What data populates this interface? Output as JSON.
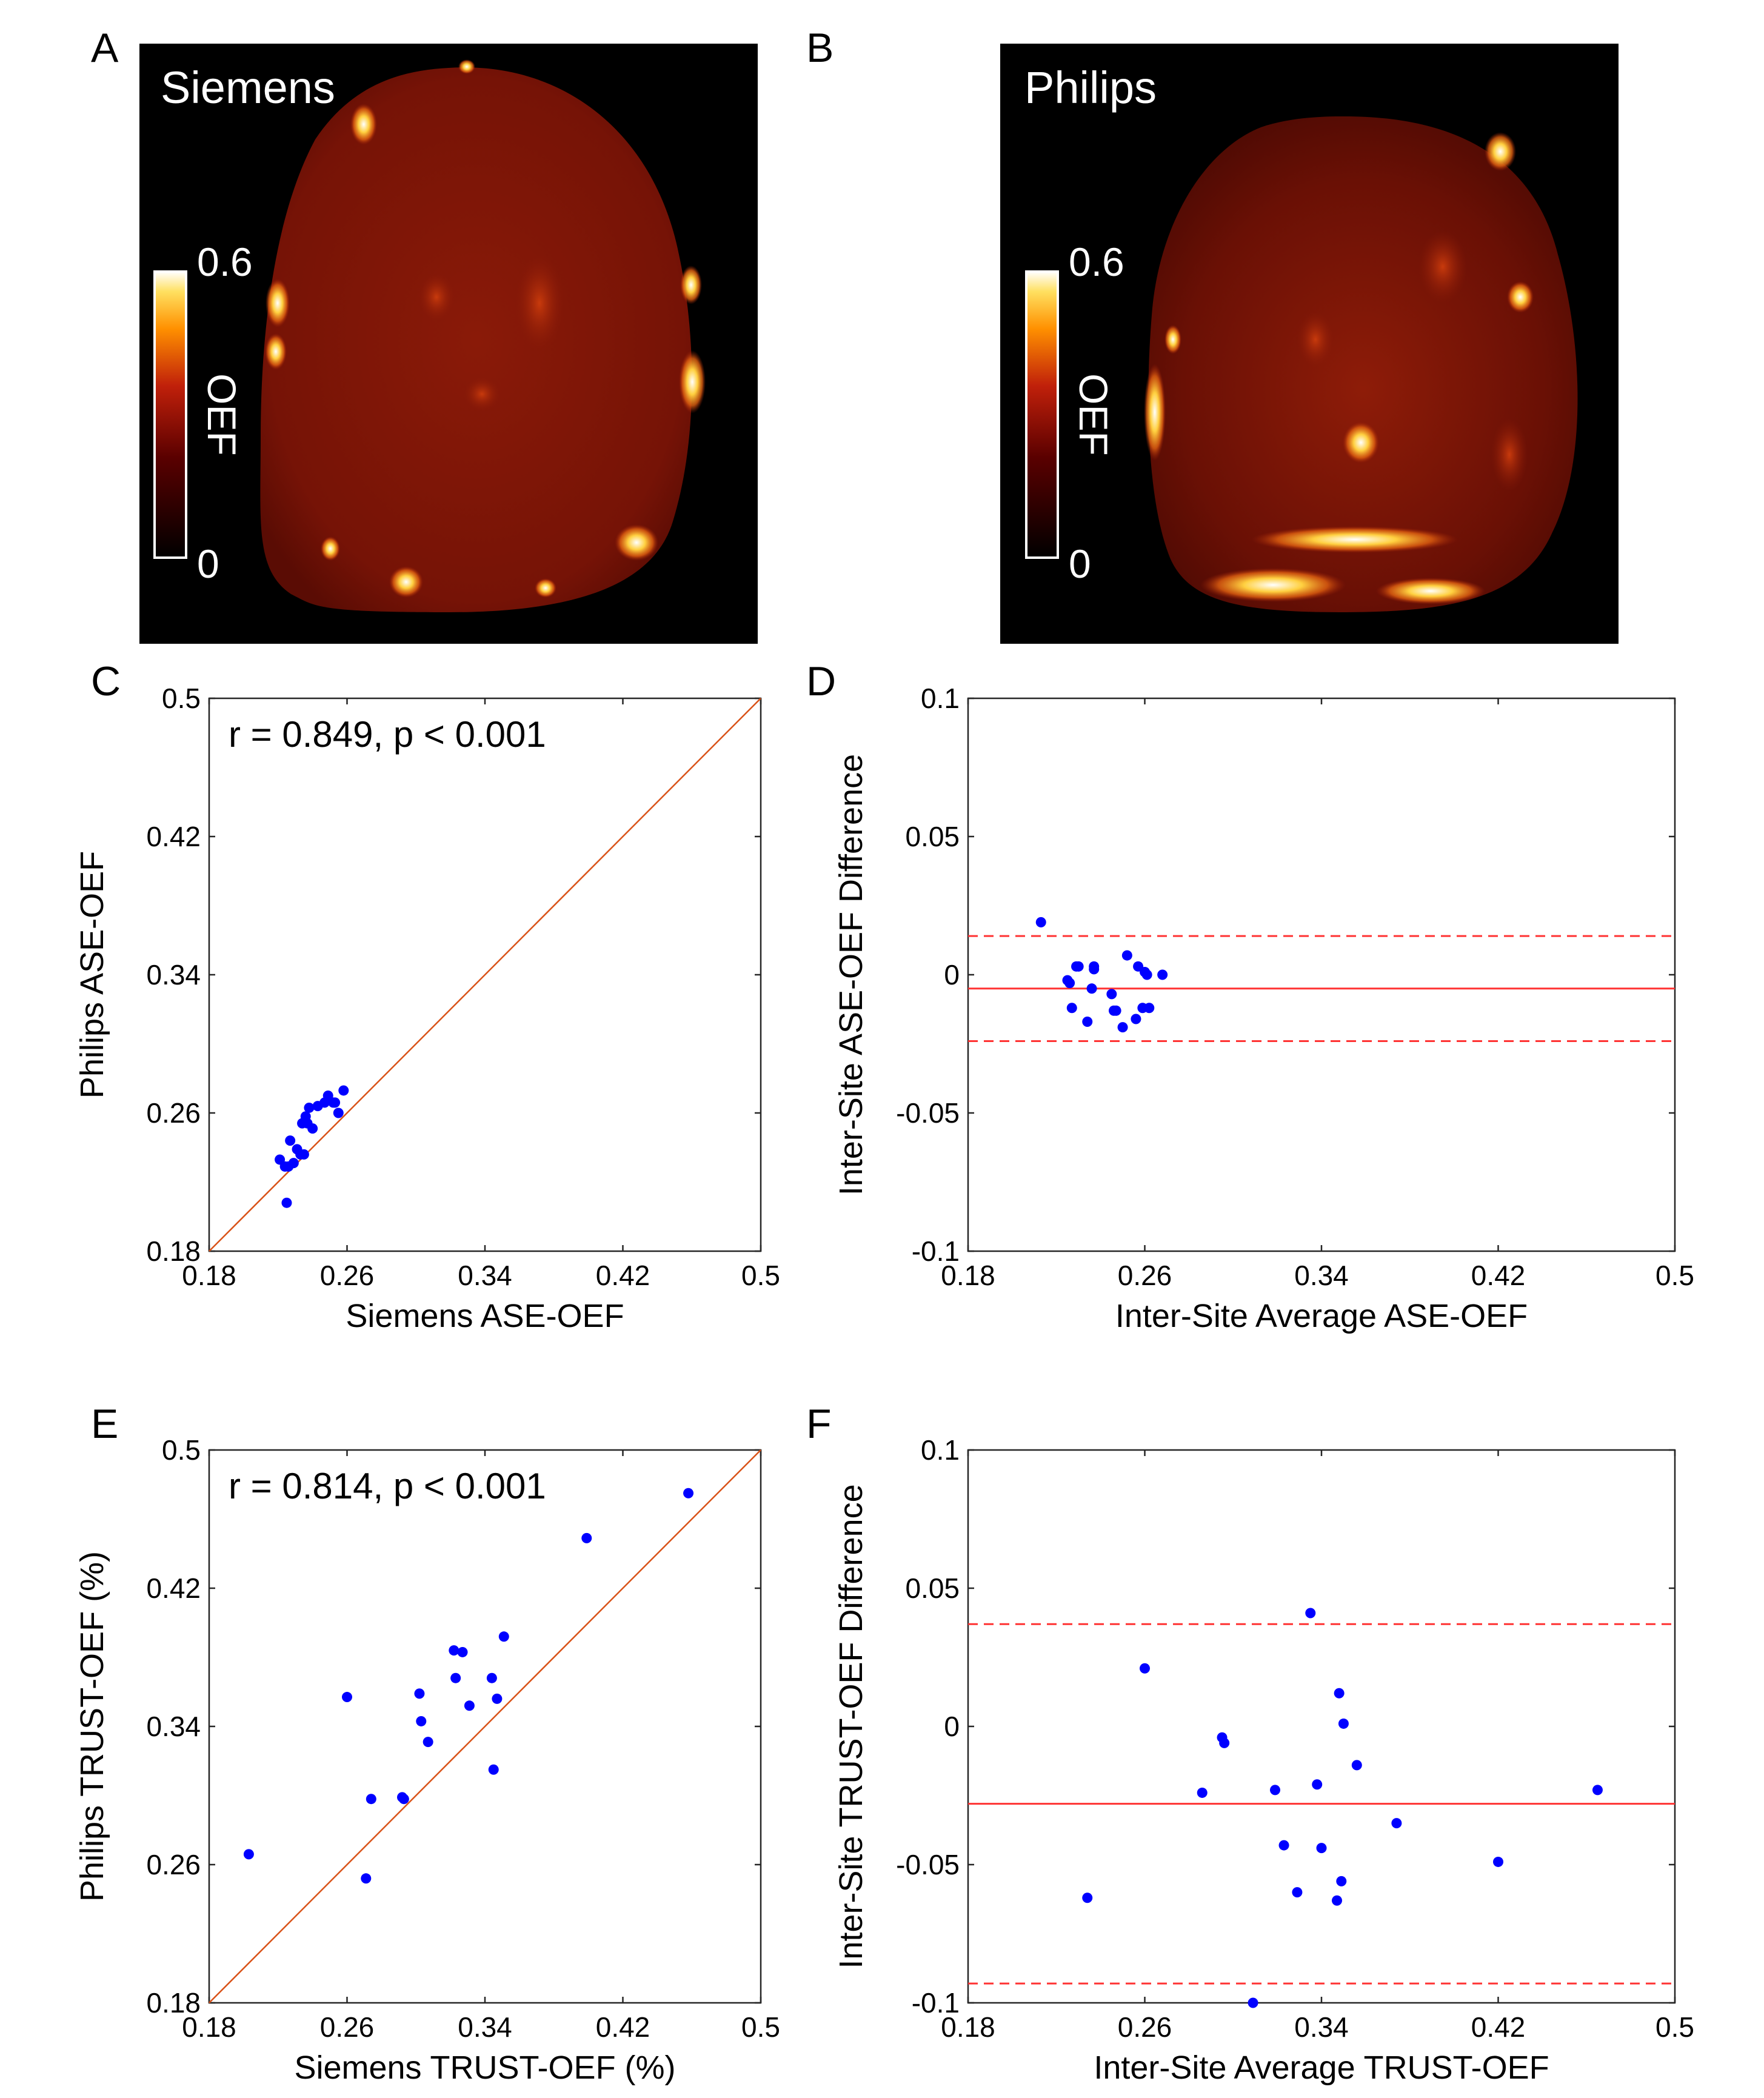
{
  "panels": {
    "A": "A",
    "B": "B",
    "C": "C",
    "D": "D",
    "E": "E",
    "F": "F"
  },
  "maps": [
    {
      "id": "A",
      "vendor": "Siemens",
      "colorbar_max": "0.6",
      "colorbar_min": "0",
      "colorbar_label": "OEF"
    },
    {
      "id": "B",
      "vendor": "Philips",
      "colorbar_max": "0.6",
      "colorbar_min": "0",
      "colorbar_label": "OEF"
    }
  ],
  "colors": {
    "points": "#0000ff",
    "identity_line": "#d95319",
    "mean_line": "#ff3333",
    "map_background": "#000000",
    "tissue": "#7a1406",
    "hot": "#ffffff"
  },
  "chart_data": [
    {
      "id": "C",
      "type": "scatter",
      "xlabel": "Siemens ASE-OEF",
      "ylabel": "Philips ASE-OEF",
      "xlim": [
        0.18,
        0.5
      ],
      "ylim": [
        0.18,
        0.5
      ],
      "xticks": [
        "0.18",
        "0.26",
        "0.34",
        "0.42",
        "0.5"
      ],
      "yticks": [
        "0.18",
        "0.26",
        "0.34",
        "0.42",
        "0.5"
      ],
      "annotation": "r = 0.849, p < 0.001",
      "identity_line": true,
      "x": [
        0.221,
        0.224,
        0.225,
        0.226,
        0.227,
        0.229,
        0.231,
        0.233,
        0.234,
        0.235,
        0.236,
        0.237,
        0.238,
        0.24,
        0.243,
        0.247,
        0.249,
        0.252,
        0.253,
        0.255,
        0.258
      ],
      "y": [
        0.233,
        0.229,
        0.208,
        0.229,
        0.244,
        0.231,
        0.239,
        0.236,
        0.254,
        0.236,
        0.258,
        0.254,
        0.263,
        0.251,
        0.264,
        0.266,
        0.27,
        0.266,
        0.266,
        0.26,
        0.273
      ]
    },
    {
      "id": "D",
      "type": "scatter",
      "xlabel": "Inter-Site Average ASE-OEF",
      "ylabel": "Inter-Site ASE-OEF Difference",
      "xlim": [
        0.18,
        0.5
      ],
      "ylim": [
        -0.1,
        0.1
      ],
      "xticks": [
        "0.18",
        "0.26",
        "0.34",
        "0.42",
        "0.5"
      ],
      "yticks": [
        "-0.1",
        "-0.05",
        "0",
        "0.05",
        "0.1"
      ],
      "mean_line": -0.005,
      "loa_upper": 0.014,
      "loa_lower": -0.024,
      "x": [
        0.213,
        0.225,
        0.226,
        0.227,
        0.229,
        0.23,
        0.234,
        0.236,
        0.237,
        0.237,
        0.245,
        0.246,
        0.247,
        0.25,
        0.252,
        0.256,
        0.257,
        0.259,
        0.26,
        0.261,
        0.262,
        0.268
      ],
      "y": [
        0.019,
        -0.002,
        -0.003,
        -0.012,
        0.003,
        0.003,
        -0.017,
        -0.005,
        0.002,
        0.003,
        -0.007,
        -0.013,
        -0.013,
        -0.019,
        0.007,
        -0.016,
        0.003,
        -0.012,
        0.001,
        0.0,
        -0.012,
        0.0
      ]
    },
    {
      "id": "E",
      "type": "scatter",
      "xlabel": "Siemens TRUST-OEF (%)",
      "ylabel": "Philips TRUST-OEF (%)",
      "xlim": [
        0.18,
        0.5
      ],
      "ylim": [
        0.18,
        0.5
      ],
      "xticks": [
        "0.18",
        "0.26",
        "0.34",
        "0.42",
        "0.5"
      ],
      "yticks": [
        "0.18",
        "0.26",
        "0.34",
        "0.42",
        "0.5"
      ],
      "annotation": "r = 0.814, p < 0.001",
      "identity_line": true,
      "x": [
        0.203,
        0.26,
        0.271,
        0.274,
        0.292,
        0.293,
        0.302,
        0.303,
        0.307,
        0.322,
        0.323,
        0.327,
        0.331,
        0.344,
        0.345,
        0.347,
        0.351,
        0.399,
        0.458
      ],
      "y": [
        0.266,
        0.357,
        0.252,
        0.298,
        0.299,
        0.298,
        0.359,
        0.343,
        0.331,
        0.384,
        0.368,
        0.383,
        0.352,
        0.368,
        0.315,
        0.356,
        0.392,
        0.449,
        0.475
      ]
    },
    {
      "id": "F",
      "type": "scatter",
      "xlabel": "Inter-Site Average TRUST-OEF",
      "ylabel": "Inter-Site TRUST-OEF Difference",
      "xlim": [
        0.18,
        0.5
      ],
      "ylim": [
        -0.1,
        0.1
      ],
      "xticks": [
        "0.18",
        "0.26",
        "0.34",
        "0.42",
        "0.5"
      ],
      "yticks": [
        "-0.1",
        "-0.05",
        "0",
        "0.05",
        "0.1"
      ],
      "mean_line": -0.028,
      "loa_upper": 0.037,
      "loa_lower": -0.093,
      "x": [
        0.234,
        0.26,
        0.286,
        0.295,
        0.296,
        0.309,
        0.319,
        0.323,
        0.329,
        0.335,
        0.338,
        0.34,
        0.347,
        0.348,
        0.349,
        0.35,
        0.356,
        0.374,
        0.42,
        0.465
      ],
      "y": [
        -0.062,
        0.021,
        -0.024,
        -0.004,
        -0.006,
        -0.1,
        -0.023,
        -0.043,
        -0.06,
        0.041,
        -0.021,
        -0.044,
        -0.063,
        0.012,
        -0.056,
        0.001,
        -0.014,
        -0.035,
        -0.049,
        -0.023
      ]
    }
  ]
}
